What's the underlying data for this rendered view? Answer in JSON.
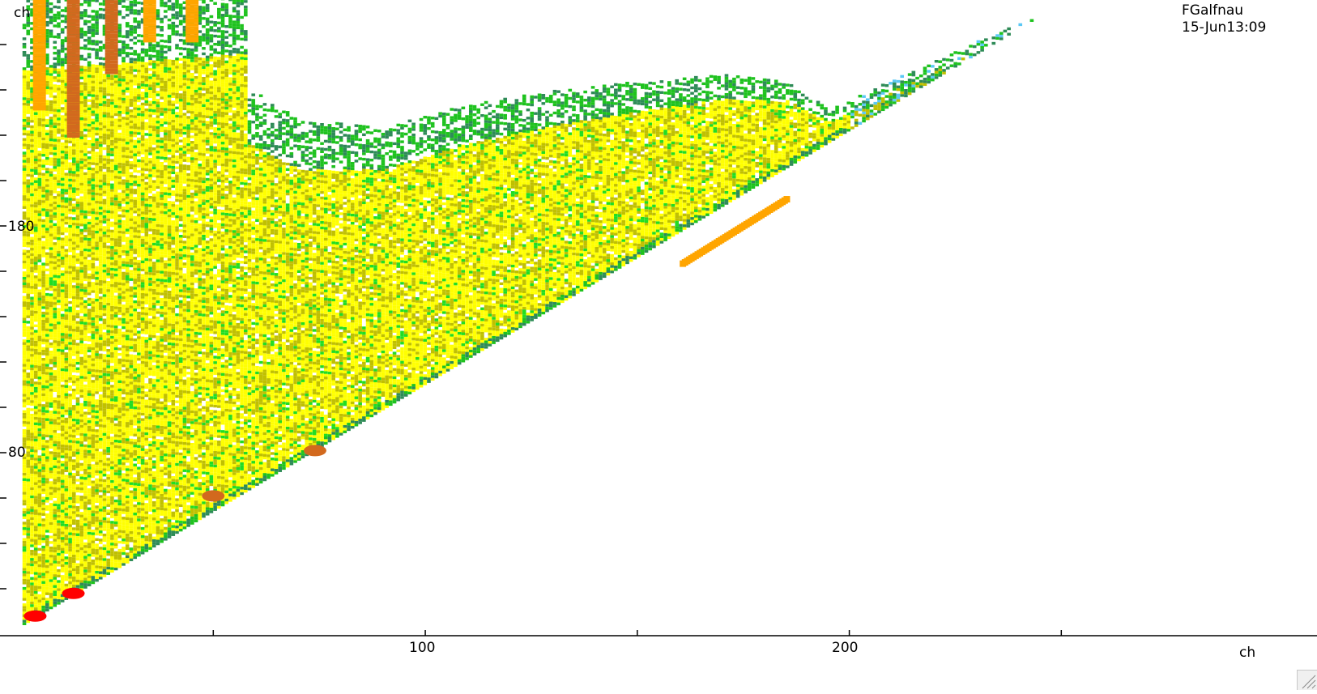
{
  "chart_data": {
    "type": "heatmap",
    "title": "",
    "xlabel": "ch",
    "ylabel": "ch",
    "x_tick_labels": [
      "100",
      "200"
    ],
    "y_tick_labels": [
      "180",
      "80"
    ],
    "x_range": [
      -0.3,
      322
    ],
    "y_range": [
      3,
      283
    ],
    "grid": false,
    "legend": "none",
    "annotation": [
      "FGalfnau",
      "15-Jun13:09"
    ],
    "color_scale": [
      "#1e90ff",
      "#40b4ff",
      "#228b22",
      "#2e8b57",
      "#22c55e",
      "#32cd32",
      "#b8c200",
      "#c8c800",
      "#ffff00",
      "#ffb000",
      "#ff8c00",
      "#d2691e",
      "#ff0000"
    ],
    "palette": {
      "white": "#ffffff",
      "blue_low": "#5bc8f5",
      "green_dark": "#2e8b57",
      "green": "#1ec21e",
      "green_bright": "#22dd22",
      "olive": "#c0c000",
      "yellow": "#ffff00",
      "orange": "#ffa500",
      "orange_dark": "#e08a00",
      "brown": "#d2691e",
      "red": "#ff0000"
    },
    "regions": [
      {
        "shape": "wedge",
        "apex": [
          5,
          3
        ],
        "lower_edge_end": [
          222,
          246
        ],
        "upper_boundary": [
          [
            5,
            285
          ],
          [
            58,
            285
          ],
          [
            58,
            240
          ],
          [
            70,
            225
          ],
          [
            90,
            222
          ],
          [
            110,
            232
          ],
          [
            130,
            238
          ],
          [
            150,
            242
          ],
          [
            170,
            245
          ],
          [
            185,
            242
          ],
          [
            195,
            230
          ],
          [
            230,
            260
          ],
          [
            260,
            283
          ]
        ],
        "fill": "yellow"
      },
      {
        "shape": "vertical_streak",
        "x": 9,
        "y_range": [
          230,
          283
        ],
        "intensity": "orange"
      },
      {
        "shape": "vertical_streak",
        "x": 17,
        "y_range": [
          218,
          283
        ],
        "intensity": "brown"
      },
      {
        "shape": "vertical_streak",
        "x": 26,
        "y_range": [
          246,
          283
        ],
        "intensity": "brown"
      },
      {
        "shape": "vertical_streak",
        "x": 35,
        "y_range": [
          260,
          283
        ],
        "intensity": "orange"
      },
      {
        "shape": "vertical_streak",
        "x": 45,
        "y_range": [
          260,
          283
        ],
        "intensity": "orange"
      },
      {
        "shape": "ridge",
        "from": [
          160,
          161
        ],
        "to": [
          185,
          190
        ],
        "intensity": "orange"
      },
      {
        "shape": "blob",
        "center": [
          74,
          80
        ],
        "intensity": "brown"
      },
      {
        "shape": "blob",
        "center": [
          50,
          60
        ],
        "intensity": "brown"
      },
      {
        "shape": "blob",
        "center": [
          17,
          17
        ],
        "intensity": "red"
      },
      {
        "shape": "blob",
        "center": [
          8,
          7
        ],
        "intensity": "red"
      },
      {
        "shape": "noise_band",
        "x_range": [
          200,
          280
        ],
        "y_range": [
          240,
          283
        ],
        "intensity": "green"
      }
    ]
  }
}
